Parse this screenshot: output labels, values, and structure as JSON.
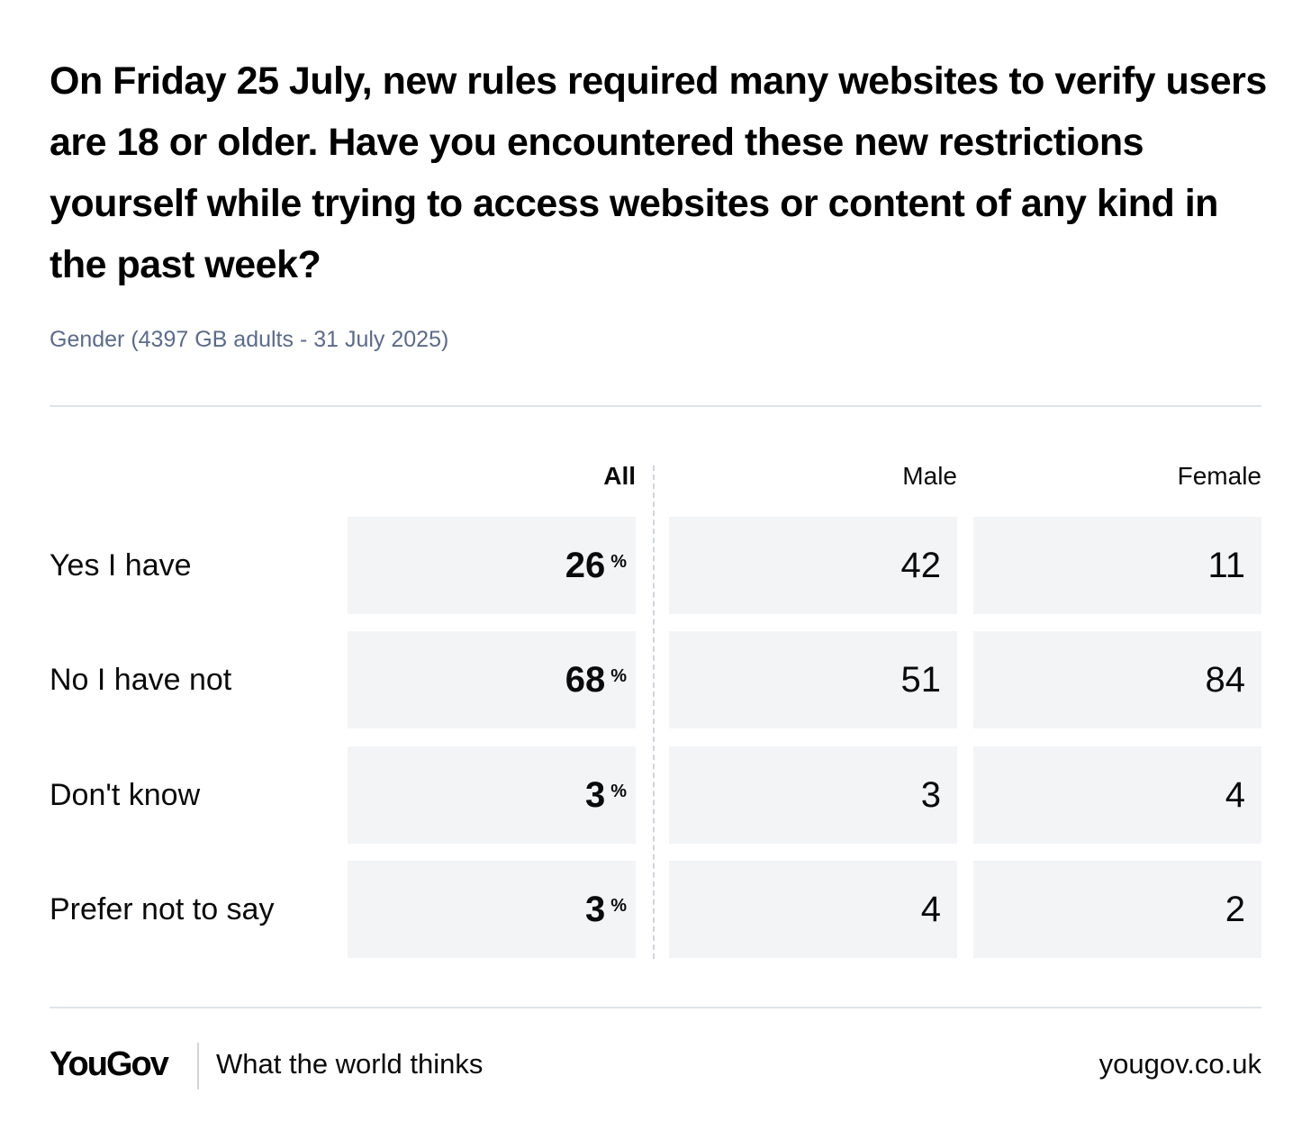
{
  "chart_data": {
    "type": "table",
    "title": "On Friday 25 July, new rules required many websites to verify users are 18 or older. Have you encountered these new restrictions yourself while trying to access websites or content of any kind in the past week?",
    "subtitle": "Gender (4397 GB adults - 31 July 2025)",
    "columns": [
      "All",
      "Male",
      "Female"
    ],
    "percent_symbol": "%",
    "rows": [
      {
        "label": "Yes I have",
        "all": "26",
        "male": "42",
        "female": "11"
      },
      {
        "label": "No I have not",
        "all": "68",
        "male": "51",
        "female": "84"
      },
      {
        "label": "Don't know",
        "all": "3",
        "male": "3",
        "female": "4"
      },
      {
        "label": "Prefer not to say",
        "all": "3",
        "male": "4",
        "female": "2"
      }
    ]
  },
  "footer": {
    "logo": "YouGov",
    "tagline": "What the world thinks",
    "site": "yougov.co.uk"
  }
}
